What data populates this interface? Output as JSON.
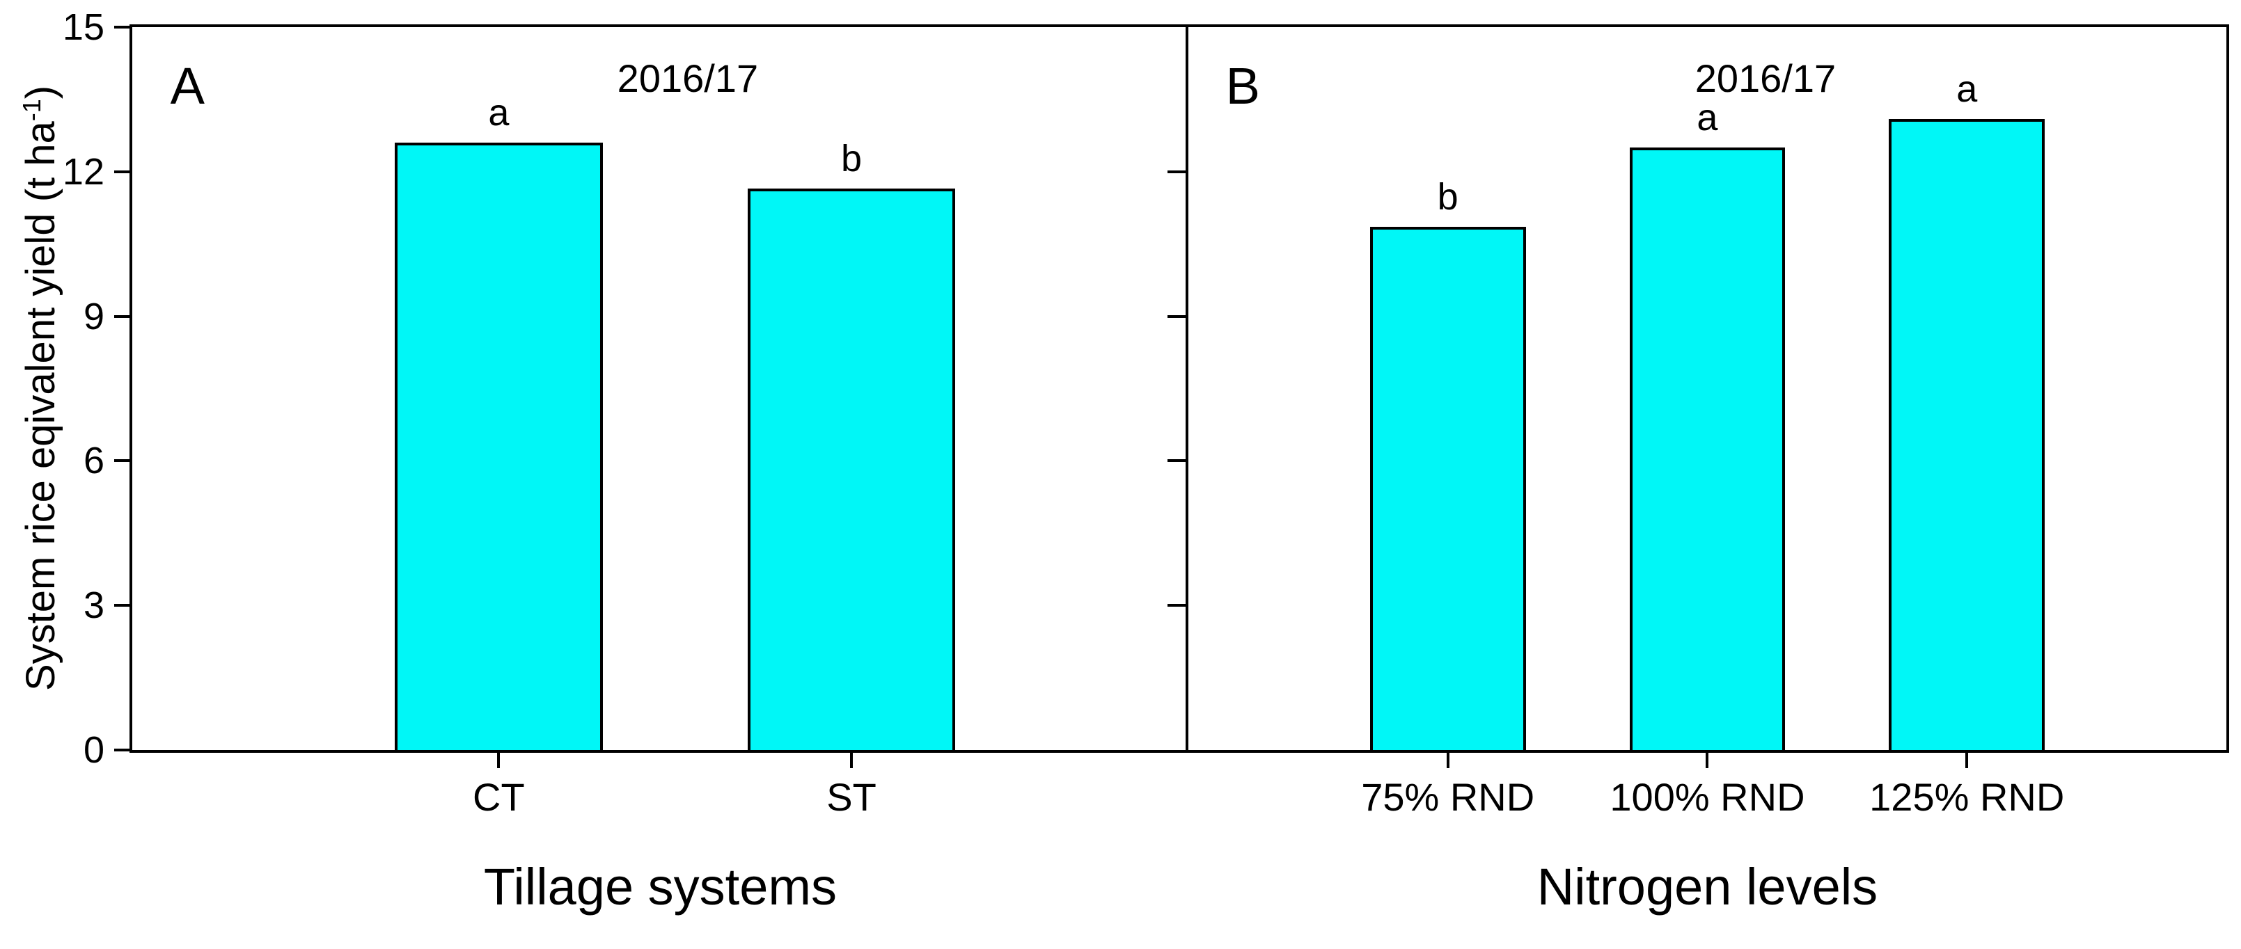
{
  "figure": {
    "ylabel_prefix": "System rice eqivalent yield (t ha",
    "ylabel_sup": "-1",
    "ylabel_suffix": ")"
  },
  "chart_data": {
    "type": "bar",
    "title": "",
    "ylabel": "System rice eqivalent yield (t ha⁻¹)",
    "ylim": [
      0,
      15
    ],
    "yticks": [
      0,
      3,
      6,
      9,
      12,
      15
    ],
    "grid": "off",
    "legend": "none",
    "bar_color": "#00F7F7",
    "bar_border_color": "#000000",
    "axis_color": "#000000",
    "divider_ticks": [
      3,
      6,
      9,
      12
    ],
    "panels": [
      {
        "panel_letter": "A",
        "xlabel": "Tillage systems",
        "annotation": "2016/17",
        "annotation_x": 0.526,
        "categories": [
          "CT",
          "ST"
        ],
        "values": [
          12.6,
          11.65
        ],
        "sig_letters": [
          "a",
          "b"
        ],
        "bar_centers": [
          0.347,
          0.681
        ],
        "bar_width": 0.197,
        "left_frac": 0.0,
        "width_frac": 0.5043
      },
      {
        "panel_letter": "B",
        "xlabel": "Nitrogen levels",
        "annotation": "2016/17",
        "annotation_x": 0.556,
        "categories": [
          "75% RND",
          "100% RND",
          "125% RND"
        ],
        "values": [
          10.85,
          12.5,
          13.1
        ],
        "sig_letters": [
          "b",
          "a",
          "a"
        ],
        "bar_centers": [
          0.25,
          0.5,
          0.75
        ],
        "bar_width": 0.15,
        "left_frac": 0.5043,
        "width_frac": 0.4957
      }
    ]
  }
}
